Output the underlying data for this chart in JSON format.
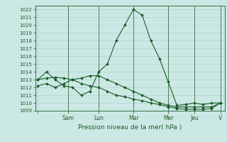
{
  "background_color": "#cce8e4",
  "grid_color": "#aacccc",
  "line_color": "#1a5c28",
  "xlabel": "Pression niveau de la mer( hPa )",
  "ylim": [
    1009,
    1022.5
  ],
  "yticks": [
    1009,
    1010,
    1011,
    1012,
    1013,
    1014,
    1015,
    1016,
    1017,
    1018,
    1019,
    1020,
    1021,
    1022
  ],
  "xtick_labels": [
    "",
    "Sam",
    "Lun",
    "Mar",
    "Mer",
    "Jeu",
    "V"
  ],
  "series": [
    [
      1013,
      1014,
      1013,
      1012.2,
      1012,
      1011,
      1011.5,
      1014,
      1015,
      1018,
      1020,
      1022,
      1021.3,
      1018,
      1015.7,
      1012.7,
      1009.7,
      1009.8,
      1010,
      1009.8,
      1010,
      1010
    ],
    [
      1012.2,
      1012.5,
      1012,
      1012.5,
      1013,
      1013.2,
      1013.5,
      1013.5,
      1013,
      1012.5,
      1012,
      1011.5,
      1011,
      1010.5,
      1010,
      1009.7,
      1009.5,
      1009.5,
      1009.5,
      1009.5,
      1009.5,
      1010
    ],
    [
      1013,
      1013.2,
      1013.3,
      1013.2,
      1013,
      1012.5,
      1012.2,
      1012,
      1011.5,
      1011,
      1010.8,
      1010.5,
      1010.3,
      1010,
      1009.8,
      1009.5,
      1009.3,
      1009.2,
      1009.2,
      1009.2,
      1009.3,
      1010
    ]
  ],
  "x_positions": [
    0,
    1,
    2,
    3,
    4,
    5,
    6,
    7,
    8,
    9,
    10,
    11,
    12,
    13,
    14,
    15,
    16,
    17,
    18,
    19,
    20,
    21
  ],
  "xtick_positions": [
    0,
    3.5,
    7,
    11,
    15,
    18,
    21
  ],
  "marker": "D",
  "markersize": 2.0,
  "linewidth": 0.8,
  "ylabel_fontsize": 5.0,
  "xlabel_fontsize": 6.5,
  "xtick_fontsize": 5.5
}
